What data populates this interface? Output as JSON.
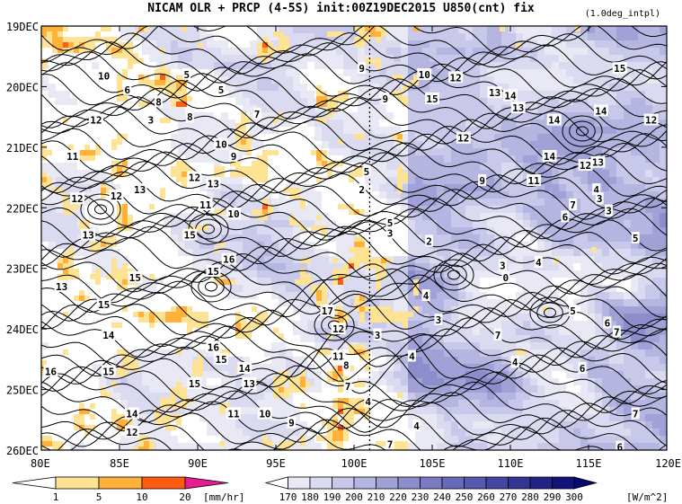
{
  "chart_data": {
    "type": "heatmap",
    "title": "NICAM  OLR + PRCP (4-5S) init:00Z19DEC2015 U850(cnt) fix",
    "subtitle": "(1.0deg_intpl)",
    "xlabel": "",
    "ylabel": "",
    "x_ticks": [
      "80E",
      "85E",
      "90E",
      "95E",
      "100E",
      "105E",
      "110E",
      "115E",
      "120E"
    ],
    "x_values": [
      80,
      85,
      90,
      95,
      100,
      105,
      110,
      115,
      120
    ],
    "xlim": [
      80,
      120
    ],
    "y_ticks": [
      "19DEC",
      "20DEC",
      "21DEC",
      "22DEC",
      "23DEC",
      "24DEC",
      "25DEC",
      "26DEC"
    ],
    "ylim": [
      "19DEC",
      "26DEC"
    ],
    "y_reversed": true,
    "reference_line_x": 101,
    "contour_labels": [
      {
        "text": "10",
        "lon": 84.0,
        "day": 0.82
      },
      {
        "text": "5",
        "lon": 89.3,
        "day": 0.8
      },
      {
        "text": "5",
        "lon": 91.5,
        "day": 1.05
      },
      {
        "text": "6",
        "lon": 85.5,
        "day": 1.05
      },
      {
        "text": "8",
        "lon": 87.5,
        "day": 1.25
      },
      {
        "text": "3",
        "lon": 87.0,
        "day": 1.55
      },
      {
        "text": "12",
        "lon": 83.5,
        "day": 1.55
      },
      {
        "text": "8",
        "lon": 89.5,
        "day": 1.5
      },
      {
        "text": "7",
        "lon": 93.8,
        "day": 1.45
      },
      {
        "text": "10",
        "lon": 91.5,
        "day": 1.95
      },
      {
        "text": "11",
        "lon": 82.0,
        "day": 2.15
      },
      {
        "text": "9",
        "lon": 92.3,
        "day": 2.15
      },
      {
        "text": "12",
        "lon": 89.8,
        "day": 2.5
      },
      {
        "text": "13",
        "lon": 91.0,
        "day": 2.6
      },
      {
        "text": "13",
        "lon": 86.3,
        "day": 2.7
      },
      {
        "text": "12",
        "lon": 84.8,
        "day": 2.8
      },
      {
        "text": "12",
        "lon": 82.3,
        "day": 2.85
      },
      {
        "text": "11",
        "lon": 90.5,
        "day": 2.95
      },
      {
        "text": "10",
        "lon": 92.3,
        "day": 3.1
      },
      {
        "text": "15",
        "lon": 89.5,
        "day": 3.45
      },
      {
        "text": "13",
        "lon": 83.0,
        "day": 3.45
      },
      {
        "text": "16",
        "lon": 92.0,
        "day": 3.85
      },
      {
        "text": "15",
        "lon": 91.0,
        "day": 4.05
      },
      {
        "text": "15",
        "lon": 86.0,
        "day": 4.15
      },
      {
        "text": "13",
        "lon": 81.3,
        "day": 4.3
      },
      {
        "text": "15",
        "lon": 84.0,
        "day": 4.6
      },
      {
        "text": "17",
        "lon": 98.3,
        "day": 4.7
      },
      {
        "text": "12",
        "lon": 99.0,
        "day": 5.0
      },
      {
        "text": "14",
        "lon": 84.3,
        "day": 5.1
      },
      {
        "text": "16",
        "lon": 91.0,
        "day": 5.3
      },
      {
        "text": "15",
        "lon": 91.5,
        "day": 5.5
      },
      {
        "text": "14",
        "lon": 93.0,
        "day": 5.65
      },
      {
        "text": "13",
        "lon": 93.3,
        "day": 5.9
      },
      {
        "text": "15",
        "lon": 89.8,
        "day": 5.9
      },
      {
        "text": "16",
        "lon": 80.6,
        "day": 5.7
      },
      {
        "text": "15",
        "lon": 84.3,
        "day": 5.7
      },
      {
        "text": "11",
        "lon": 92.3,
        "day": 6.4
      },
      {
        "text": "10",
        "lon": 94.3,
        "day": 6.4
      },
      {
        "text": "9",
        "lon": 96.0,
        "day": 6.55
      },
      {
        "text": "14",
        "lon": 85.8,
        "day": 6.4
      },
      {
        "text": "12",
        "lon": 85.8,
        "day": 6.7
      },
      {
        "text": "11",
        "lon": 99.0,
        "day": 5.45
      },
      {
        "text": "8",
        "lon": 99.5,
        "day": 5.6
      },
      {
        "text": "7",
        "lon": 99.6,
        "day": 5.95
      },
      {
        "text": "3",
        "lon": 101.5,
        "day": 5.1
      },
      {
        "text": "9",
        "lon": 100.5,
        "day": 0.7
      },
      {
        "text": "10",
        "lon": 104.5,
        "day": 0.8
      },
      {
        "text": "12",
        "lon": 106.5,
        "day": 0.85
      },
      {
        "text": "15",
        "lon": 105.0,
        "day": 1.2
      },
      {
        "text": "13",
        "lon": 109.0,
        "day": 1.1
      },
      {
        "text": "14",
        "lon": 110.0,
        "day": 1.15
      },
      {
        "text": "13",
        "lon": 110.5,
        "day": 1.35
      },
      {
        "text": "14",
        "lon": 112.8,
        "day": 1.55
      },
      {
        "text": "15",
        "lon": 117.0,
        "day": 0.7
      },
      {
        "text": "14",
        "lon": 115.8,
        "day": 1.4
      },
      {
        "text": "12",
        "lon": 119.0,
        "day": 1.55
      },
      {
        "text": "12",
        "lon": 107.0,
        "day": 1.85
      },
      {
        "text": "14",
        "lon": 112.5,
        "day": 2.15
      },
      {
        "text": "12",
        "lon": 114.8,
        "day": 2.3
      },
      {
        "text": "13",
        "lon": 115.6,
        "day": 2.25
      },
      {
        "text": "11",
        "lon": 111.5,
        "day": 2.55
      },
      {
        "text": "9",
        "lon": 108.2,
        "day": 2.55
      },
      {
        "text": "4",
        "lon": 115.5,
        "day": 2.7
      },
      {
        "text": "3",
        "lon": 115.7,
        "day": 2.85
      },
      {
        "text": "7",
        "lon": 114.0,
        "day": 2.95
      },
      {
        "text": "6",
        "lon": 113.5,
        "day": 3.15
      },
      {
        "text": "3",
        "lon": 116.3,
        "day": 3.05
      },
      {
        "text": "5",
        "lon": 118.0,
        "day": 3.5
      },
      {
        "text": "9",
        "lon": 102.0,
        "day": 1.2
      },
      {
        "text": "5",
        "lon": 100.8,
        "day": 2.4
      },
      {
        "text": "2",
        "lon": 100.5,
        "day": 2.7
      },
      {
        "text": "5",
        "lon": 102.3,
        "day": 3.25
      },
      {
        "text": "3",
        "lon": 102.3,
        "day": 3.42
      },
      {
        "text": "2",
        "lon": 104.8,
        "day": 3.55
      },
      {
        "text": "3",
        "lon": 109.5,
        "day": 3.95
      },
      {
        "text": "0",
        "lon": 109.7,
        "day": 4.15
      },
      {
        "text": "4",
        "lon": 111.8,
        "day": 3.9
      },
      {
        "text": "4",
        "lon": 104.6,
        "day": 4.45
      },
      {
        "text": "3",
        "lon": 105.4,
        "day": 4.85
      },
      {
        "text": "5",
        "lon": 114.0,
        "day": 4.7
      },
      {
        "text": "6",
        "lon": 116.2,
        "day": 4.9
      },
      {
        "text": "7",
        "lon": 116.8,
        "day": 5.05
      },
      {
        "text": "7",
        "lon": 109.2,
        "day": 5.1
      },
      {
        "text": "4",
        "lon": 110.3,
        "day": 5.55
      },
      {
        "text": "4",
        "lon": 103.7,
        "day": 5.45
      },
      {
        "text": "6",
        "lon": 114.6,
        "day": 5.65
      },
      {
        "text": "7",
        "lon": 118.0,
        "day": 6.4
      },
      {
        "text": "4",
        "lon": 104.0,
        "day": 6.6
      },
      {
        "text": "6",
        "lon": 117.0,
        "day": 6.95
      },
      {
        "text": "7",
        "lon": 102.3,
        "day": 6.9
      },
      {
        "text": "4",
        "lon": 100.9,
        "day": 6.2
      }
    ],
    "colorbars": [
      {
        "name": "PRCP",
        "unit": "[mm/hr]",
        "tick_labels": [
          "1",
          "5",
          "10",
          "20"
        ],
        "colors": [
          "#ffffff",
          "#ffe394",
          "#ffb13a",
          "#ff5c12",
          "#e61e90"
        ]
      },
      {
        "name": "OLR",
        "unit": "[W/m^2]",
        "tick_labels": [
          "170",
          "180",
          "190",
          "200",
          "210",
          "220",
          "230",
          "240",
          "250",
          "260",
          "270",
          "280",
          "290",
          "300"
        ],
        "colors": [
          "#ffffff",
          "#e9e9f6",
          "#dadaf0",
          "#c8c9ea",
          "#b4b5e0",
          "#a0a1d6",
          "#8c8ecc",
          "#7a7bc3",
          "#6869b9",
          "#5657ad",
          "#4446a1",
          "#333494",
          "#222387",
          "#12137a",
          "#060870"
        ]
      }
    ],
    "legend": "bottom"
  }
}
